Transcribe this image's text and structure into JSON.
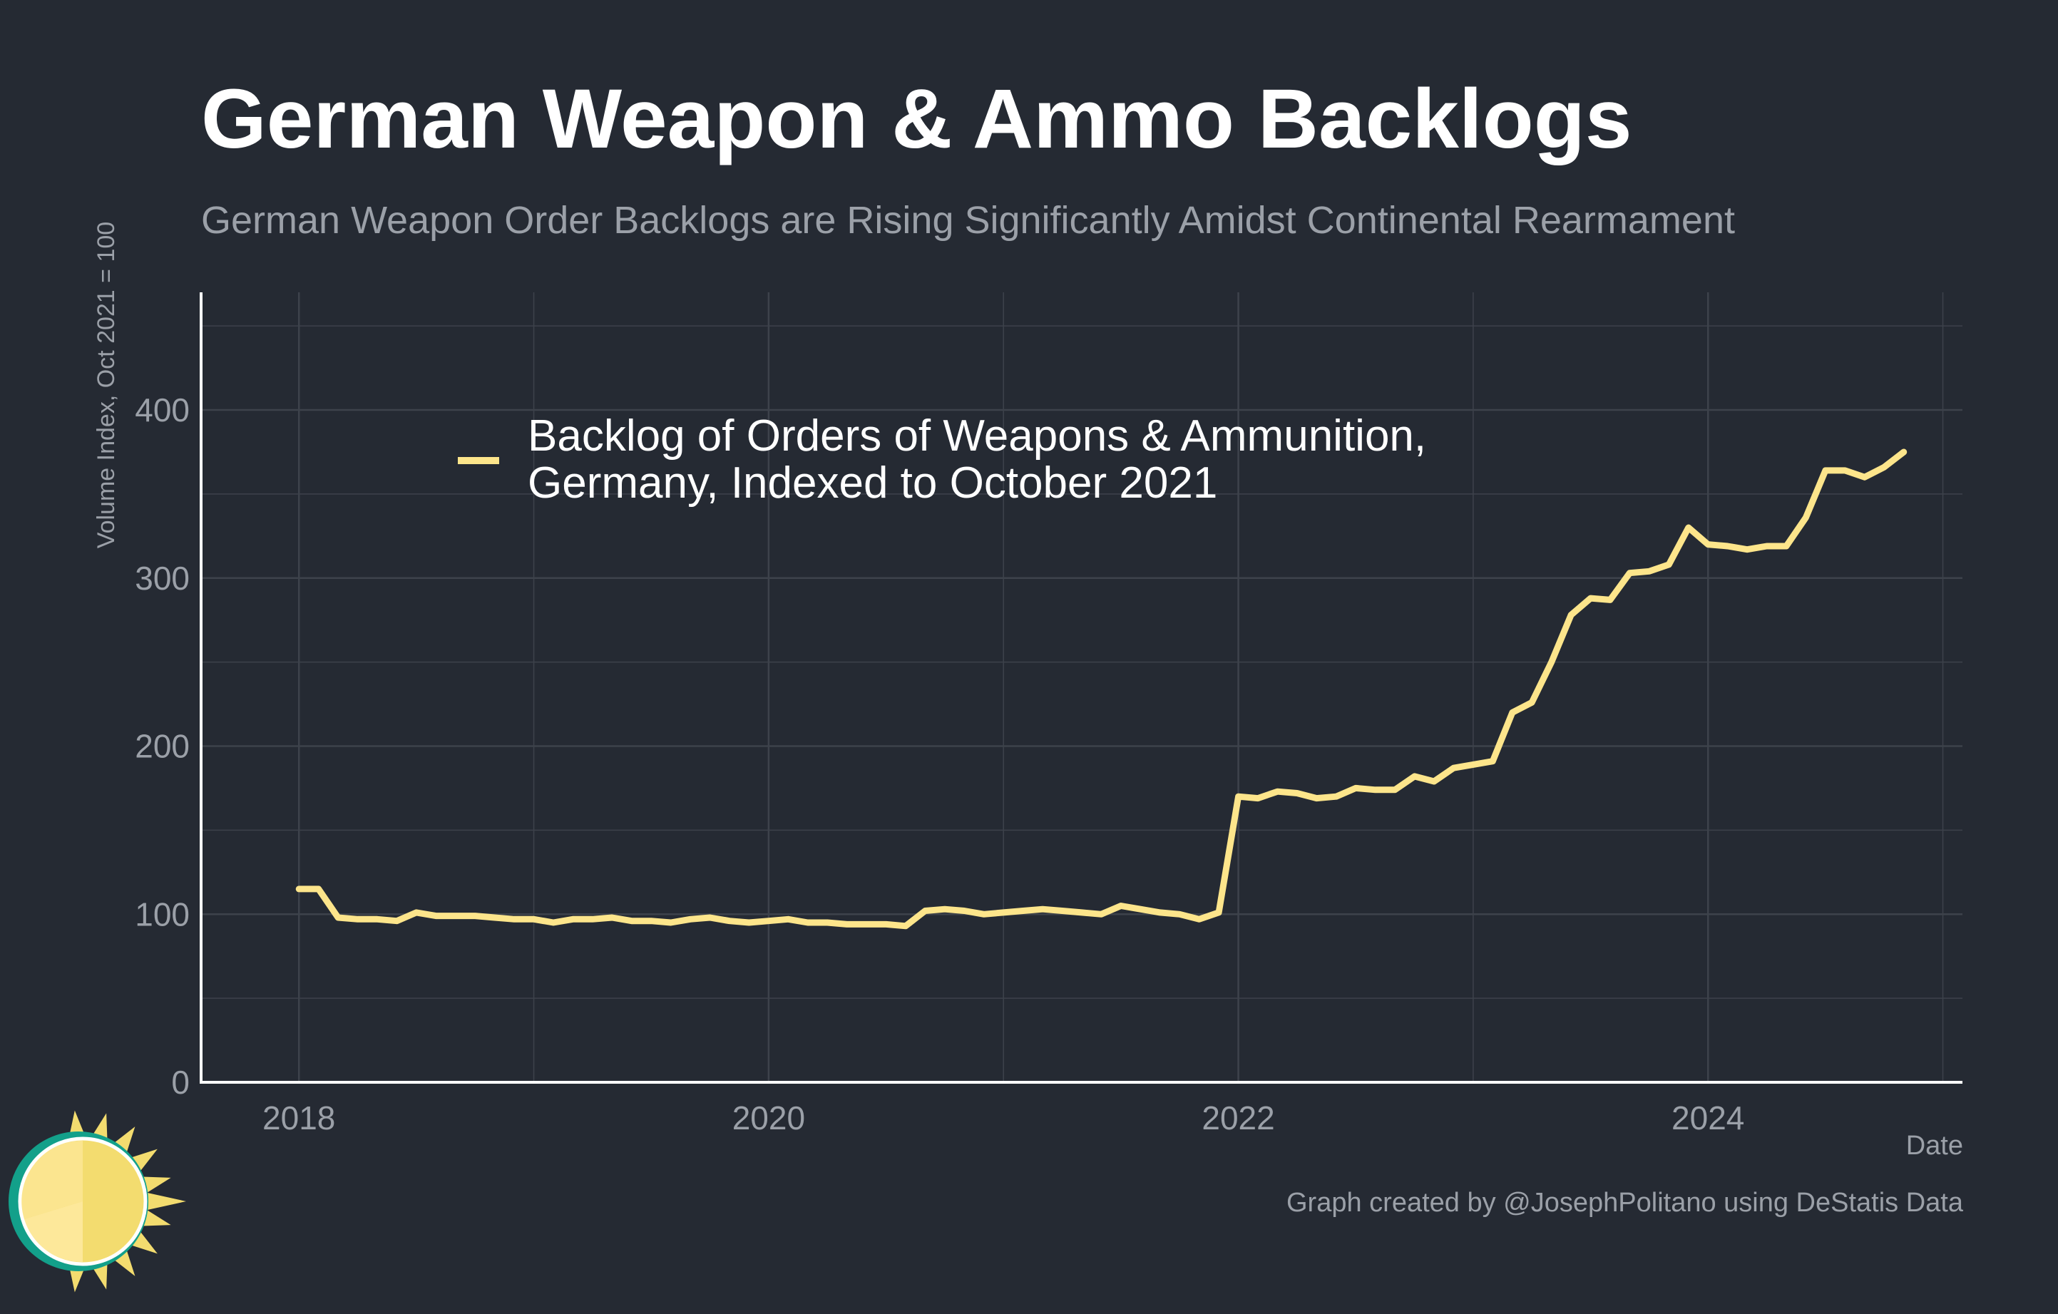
{
  "title": "German Weapon & Ammo Backlogs",
  "subtitle": "German Weapon Order Backlogs are Rising Significantly Amidst Continental Rearmament",
  "credit": "Graph created by @JosephPolitano using DeStatis Data",
  "colors": {
    "background": "#252a33",
    "line": "#fde58b",
    "grid": "#3d424b",
    "axis": "#ffffff",
    "muted": "#9ba0a8"
  },
  "logo_icon": "sun-icon",
  "chart_data": {
    "type": "line",
    "xlabel": "Date",
    "ylabel": "Volume Index, Oct 2021 = 100",
    "xlim": [
      "2017-08",
      "2025-02"
    ],
    "ylim": [
      0,
      470
    ],
    "x_ticks": [
      "2018",
      "2020",
      "2022",
      "2024"
    ],
    "y_ticks": [
      "0",
      "100",
      "200",
      "300",
      "400"
    ],
    "grid": true,
    "legend_position": "top-left",
    "series": [
      {
        "name": "Backlog of Orders of Weapons & Ammunition, Germany, Indexed to October 2021",
        "color": "#fde58b",
        "x": [
          "2018-01",
          "2018-02",
          "2018-03",
          "2018-04",
          "2018-05",
          "2018-06",
          "2018-07",
          "2018-08",
          "2018-09",
          "2018-10",
          "2018-11",
          "2018-12",
          "2019-01",
          "2019-02",
          "2019-03",
          "2019-04",
          "2019-05",
          "2019-06",
          "2019-07",
          "2019-08",
          "2019-09",
          "2019-10",
          "2019-11",
          "2019-12",
          "2020-01",
          "2020-02",
          "2020-03",
          "2020-04",
          "2020-05",
          "2020-06",
          "2020-07",
          "2020-08",
          "2020-09",
          "2020-10",
          "2020-11",
          "2020-12",
          "2021-01",
          "2021-02",
          "2021-03",
          "2021-04",
          "2021-05",
          "2021-06",
          "2021-07",
          "2021-08",
          "2021-09",
          "2021-10",
          "2021-11",
          "2021-12",
          "2022-01",
          "2022-02",
          "2022-03",
          "2022-04",
          "2022-05",
          "2022-06",
          "2022-07",
          "2022-08",
          "2022-09",
          "2022-10",
          "2022-11",
          "2022-12",
          "2023-01",
          "2023-02",
          "2023-03",
          "2023-04",
          "2023-05",
          "2023-06",
          "2023-07",
          "2023-08",
          "2023-09",
          "2023-10",
          "2023-11",
          "2023-12",
          "2024-01",
          "2024-02",
          "2024-03",
          "2024-04",
          "2024-05",
          "2024-06",
          "2024-07",
          "2024-08",
          "2024-09",
          "2024-10",
          "2024-11"
        ],
        "values": [
          115,
          115,
          98,
          97,
          97,
          96,
          101,
          99,
          99,
          99,
          98,
          97,
          97,
          95,
          97,
          97,
          98,
          96,
          96,
          95,
          97,
          98,
          96,
          95,
          96,
          97,
          95,
          95,
          94,
          94,
          94,
          93,
          102,
          103,
          102,
          100,
          101,
          102,
          103,
          102,
          101,
          100,
          105,
          103,
          101,
          100,
          97,
          101,
          170,
          169,
          173,
          172,
          169,
          170,
          175,
          174,
          174,
          182,
          179,
          187,
          189,
          191,
          220,
          226,
          250,
          278,
          288,
          287,
          303,
          304,
          308,
          330,
          320,
          319,
          317,
          319,
          319,
          336,
          364,
          364,
          360,
          366,
          375
        ]
      }
    ]
  }
}
